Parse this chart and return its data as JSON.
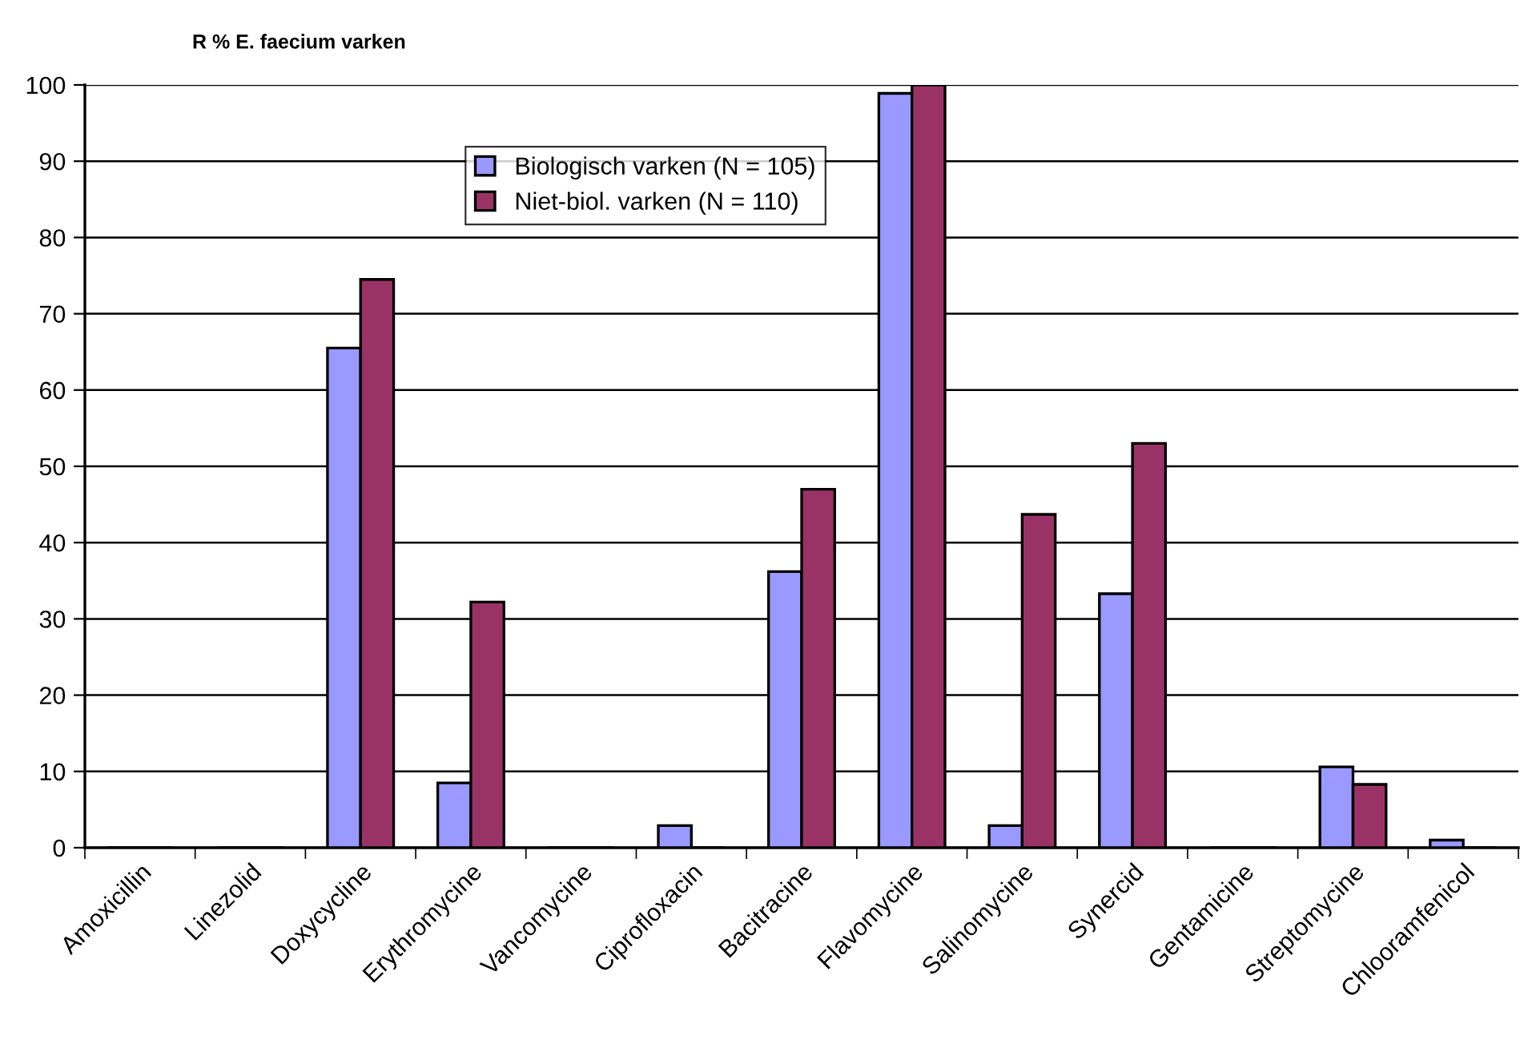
{
  "chart_data": {
    "type": "bar",
    "title": "R % E. faecium varken",
    "categories": [
      "Amoxicillin",
      "Linezolid",
      "Doxycycline",
      "Erythromycine",
      "Vancomycine",
      "Ciprofloxacin",
      "Bacitracine",
      "Flavomycine",
      "Salinomycine",
      "Synercid",
      "Gentamicine",
      "Streptomycine",
      "Chlooramfenicol"
    ],
    "series": [
      {
        "name": "Biologisch varken (N = 105)",
        "color": "#9999ff",
        "values": [
          0,
          0,
          65.5,
          8.5,
          0,
          2.9,
          36.2,
          98.9,
          2.9,
          33.3,
          0,
          10.6,
          1.0
        ]
      },
      {
        "name": "Niet-biol. varken (N = 110)",
        "color": "#993366",
        "values": [
          0,
          0,
          74.5,
          32.2,
          0,
          0,
          47.0,
          100,
          43.7,
          53.0,
          0,
          8.3,
          0
        ]
      }
    ],
    "ylim": [
      0,
      100
    ],
    "yticks": [
      0,
      10,
      20,
      30,
      40,
      50,
      60,
      70,
      80,
      90,
      100
    ],
    "grid": "y",
    "legend": "top left"
  }
}
